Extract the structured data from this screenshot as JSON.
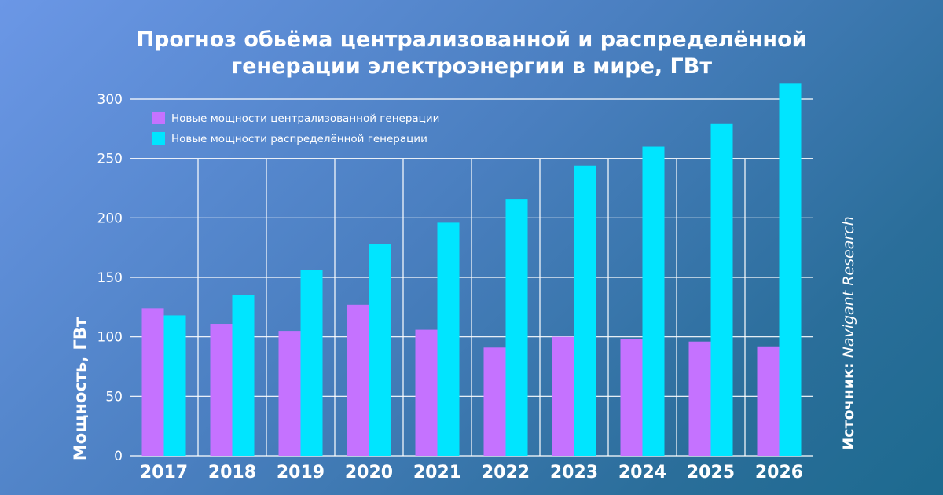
{
  "title_lines": [
    "Прогноз обьёма централизованной и распределённой",
    "генерации электроэнергии в мире, ГВт"
  ],
  "source": {
    "label": "Источник:",
    "value": "Navigant Research"
  },
  "colors": {
    "centralized": "#c572ff",
    "distributed": "#00e5ff",
    "grid": "#ffffff"
  },
  "chart_data": {
    "type": "bar",
    "title": "Прогноз обьёма централизованной и распределённой генерации электроэнергии в мире, ГВт",
    "xlabel": "",
    "ylabel": "Мощность, ГВт",
    "ylim": [
      0,
      300
    ],
    "yticks": [
      0,
      50,
      100,
      150,
      200,
      250,
      300
    ],
    "grid": true,
    "legend_position": "top-left",
    "categories": [
      "2017",
      "2018",
      "2019",
      "2020",
      "2021",
      "2022",
      "2023",
      "2024",
      "2025",
      "2026"
    ],
    "series": [
      {
        "name": "Новые мощности централизованной генерации",
        "values": [
          124,
          111,
          105,
          127,
          106,
          91,
          100,
          98,
          96,
          92
        ]
      },
      {
        "name": "Новые мощности распределённой генерации",
        "values": [
          118,
          135,
          156,
          178,
          196,
          216,
          244,
          260,
          279,
          313
        ]
      }
    ]
  }
}
